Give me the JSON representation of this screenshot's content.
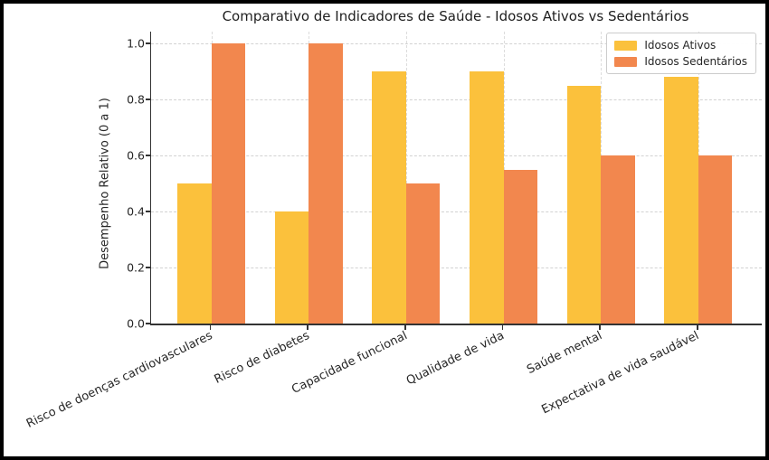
{
  "chart_data": {
    "type": "bar",
    "title": "Comparativo de Indicadores de Saúde - Idosos Ativos vs Sedentários",
    "xlabel": "",
    "ylabel": "Desempenho Relativo (0 a 1)",
    "categories": [
      "Risco de doenças cardiovasculares",
      "Risco de diabetes",
      "Capacidade funcional",
      "Qualidade de vida",
      "Saúde mental",
      "Expectativa de vida saudável"
    ],
    "series": [
      {
        "name": "Idosos Ativos",
        "color": "#FBC13C",
        "values": [
          0.5,
          0.4,
          0.9,
          0.9,
          0.85,
          0.88
        ]
      },
      {
        "name": "Idosos Sedentários",
        "color": "#F2874E",
        "values": [
          1.0,
          1.0,
          0.5,
          0.55,
          0.6,
          0.6
        ]
      }
    ],
    "yticks": [
      0.0,
      0.2,
      0.4,
      0.6,
      0.8,
      1.0
    ],
    "ytick_labels": [
      "0.0",
      "0.2",
      "0.4",
      "0.6",
      "0.8",
      "1.0"
    ],
    "ylim": [
      0,
      1.04
    ],
    "grid": true,
    "grid_style": "dashed",
    "legend_position": "upper right"
  }
}
